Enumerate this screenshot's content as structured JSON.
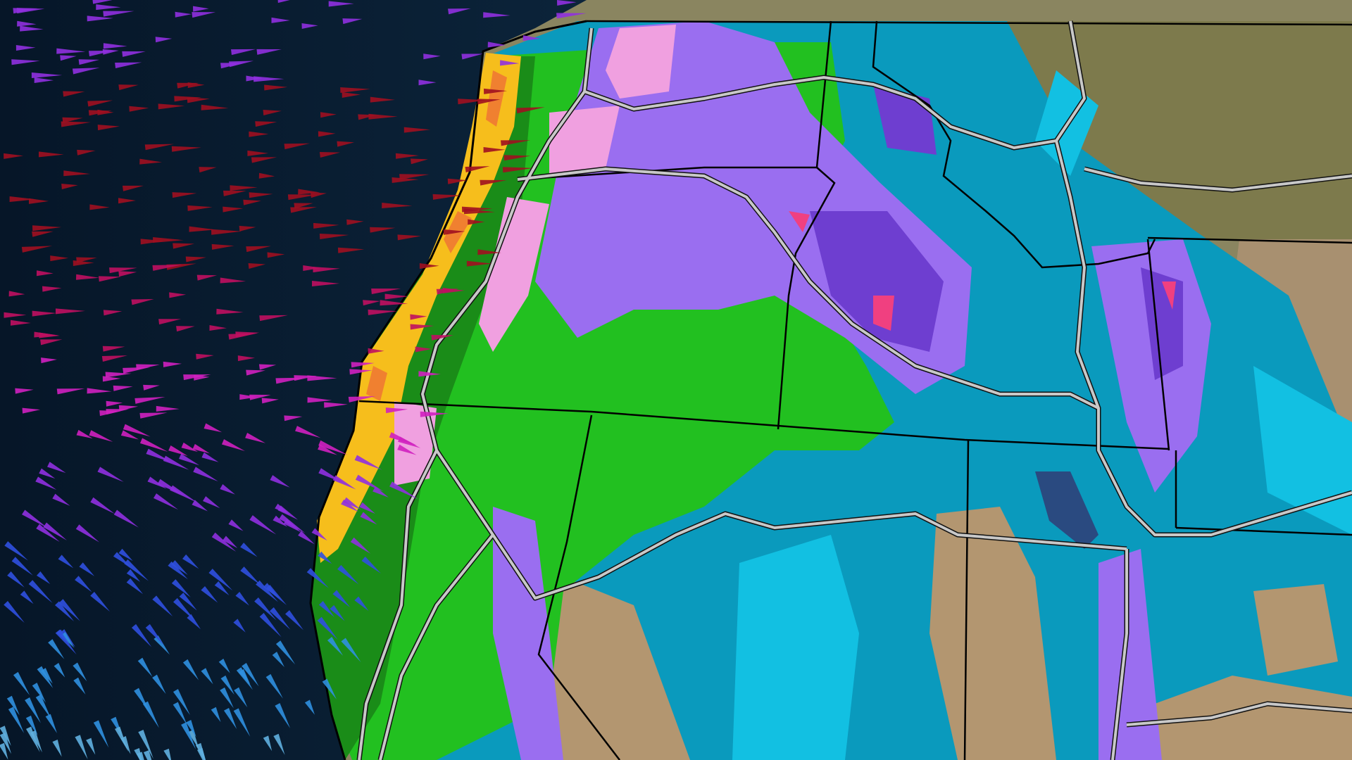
{
  "map": {
    "colors": {
      "ocean": "#0e2a40",
      "ocean_dark": "#071a2b",
      "land_desert": "#b89a70",
      "land_forest": "#5d6b3a",
      "precip_light_teal": "#0aa0c0",
      "precip_cyan": "#10c0e0",
      "precip_green": "#20c020",
      "precip_dark_green": "#189018",
      "precip_yellow": "#f8c020",
      "precip_orange": "#f08030",
      "precip_purple": "#9a70f0",
      "precip_violet": "#7040d0",
      "precip_pink": "#f0a0e0",
      "precip_red": "#f04080",
      "borders": "#000000",
      "highways": "#c8c8c8"
    },
    "wind_arrow_colors": [
      "#a01020",
      "#c01060",
      "#d020c0",
      "#9030e0",
      "#3050e0",
      "#3090e0",
      "#60b0e0"
    ],
    "icons": [
      "wind-arrow-icon"
    ]
  }
}
